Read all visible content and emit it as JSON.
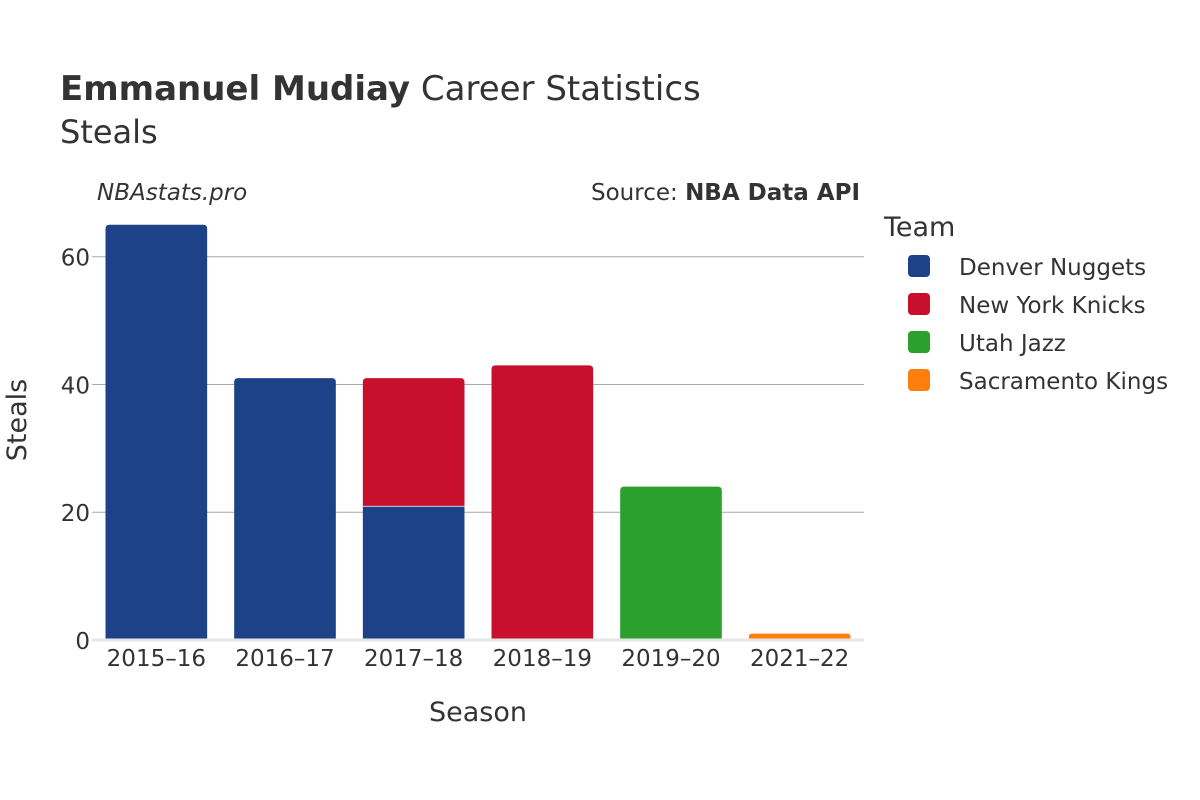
{
  "chart_data": {
    "type": "bar",
    "stacked": true,
    "title_bold": "Emmanuel Mudiay",
    "title_rest": " Career Statistics",
    "subtitle": "Steals",
    "watermark": "NBAstats.pro",
    "source_prefix": "Source: ",
    "source_bold": "NBA Data API",
    "xlabel": "Season",
    "ylabel": "Steals",
    "ylim": [
      0,
      67
    ],
    "yticks": [
      0,
      20,
      40,
      60
    ],
    "grid": true,
    "legend_title": "Team",
    "legend_position": "right",
    "categories": [
      "2015–16",
      "2016–17",
      "2017–18",
      "2018–19",
      "2019–20",
      "2021–22"
    ],
    "series": [
      {
        "name": "Denver Nuggets",
        "color": "#1d4287",
        "values": [
          65,
          41,
          21,
          0,
          0,
          0
        ]
      },
      {
        "name": "New York Knicks",
        "color": "#c8102e",
        "values": [
          0,
          0,
          20,
          43,
          0,
          0
        ]
      },
      {
        "name": "Utah Jazz",
        "color": "#2ca02c",
        "values": [
          0,
          0,
          0,
          0,
          24,
          0
        ]
      },
      {
        "name": "Sacramento Kings",
        "color": "#ff7f0e",
        "values": [
          0,
          0,
          0,
          0,
          0,
          1
        ]
      }
    ]
  }
}
